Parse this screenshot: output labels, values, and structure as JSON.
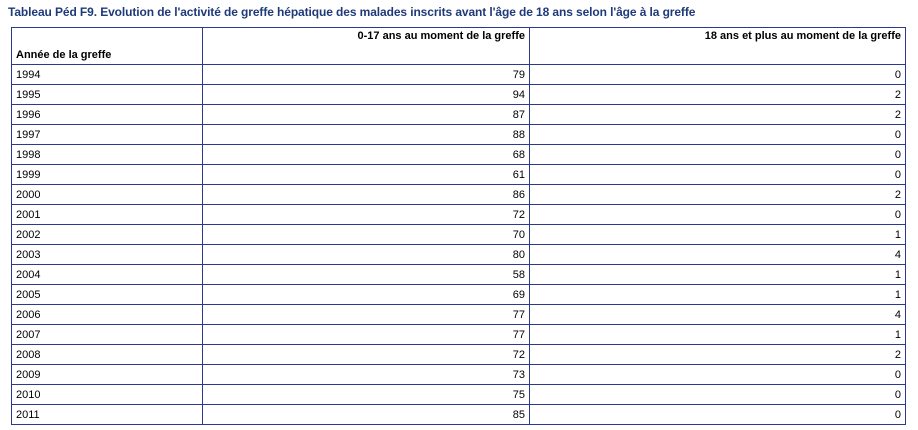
{
  "caption": "Tableau Péd F9. Evolution de l'activité de greffe hépatique des malades inscrits avant l'âge de 18 ans selon l'âge à la greffe",
  "table": {
    "headers": [
      "Année de la greffe",
      "0-17 ans au moment de la greffe",
      "18 ans et plus au moment de la greffe"
    ],
    "rows": [
      [
        "1994",
        "79",
        "0"
      ],
      [
        "1995",
        "94",
        "2"
      ],
      [
        "1996",
        "87",
        "2"
      ],
      [
        "1997",
        "88",
        "0"
      ],
      [
        "1998",
        "68",
        "0"
      ],
      [
        "1999",
        "61",
        "0"
      ],
      [
        "2000",
        "86",
        "2"
      ],
      [
        "2001",
        "72",
        "0"
      ],
      [
        "2002",
        "70",
        "1"
      ],
      [
        "2003",
        "80",
        "4"
      ],
      [
        "2004",
        "58",
        "1"
      ],
      [
        "2005",
        "69",
        "1"
      ],
      [
        "2006",
        "77",
        "4"
      ],
      [
        "2007",
        "77",
        "1"
      ],
      [
        "2008",
        "72",
        "2"
      ],
      [
        "2009",
        "73",
        "0"
      ],
      [
        "2010",
        "75",
        "0"
      ],
      [
        "2011",
        "85",
        "0"
      ]
    ]
  }
}
